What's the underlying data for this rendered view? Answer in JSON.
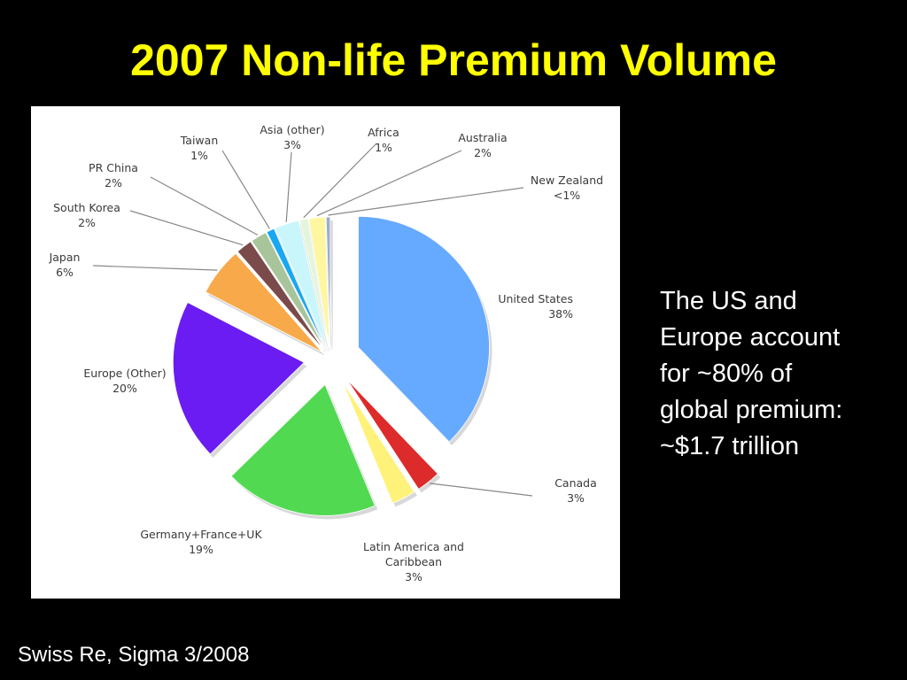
{
  "slide": {
    "title": "2007 Non-life Premium Volume",
    "note_lines": [
      "The US and",
      "Europe account",
      "for ~80% of",
      "global premium:",
      "~$1.7 trillion"
    ],
    "source": "Swiss Re, Sigma 3/2008"
  },
  "chart_data": {
    "type": "pie",
    "title": "",
    "unit": "%",
    "legend": "none",
    "slices": [
      {
        "name": "United States",
        "label": "38%",
        "value": 38,
        "color": "#66aaff"
      },
      {
        "name": "Canada",
        "label": "3%",
        "value": 3,
        "color": "#dd2b2b"
      },
      {
        "name": "Latin America and Caribbean",
        "label": "3%",
        "value": 3,
        "color": "#fff27a"
      },
      {
        "name": "Germany+France+UK",
        "label": "19%",
        "value": 19,
        "color": "#52d952"
      },
      {
        "name": "Europe (Other)",
        "label": "20%",
        "value": 20,
        "color": "#6a1cf2"
      },
      {
        "name": "Japan",
        "label": "6%",
        "value": 6,
        "color": "#f8a94a"
      },
      {
        "name": "South Korea",
        "label": "2%",
        "value": 2,
        "color": "#7b4a4a"
      },
      {
        "name": "PR China",
        "label": "2%",
        "value": 2,
        "color": "#a8c49a"
      },
      {
        "name": "Taiwan",
        "label": "1%",
        "value": 1,
        "color": "#18a8f0"
      },
      {
        "name": "Asia (other)",
        "label": "3%",
        "value": 3,
        "color": "#c8f6fa"
      },
      {
        "name": "Africa",
        "label": "1%",
        "value": 1,
        "color": "#e4f5dc"
      },
      {
        "name": "Australia",
        "label": "2%",
        "value": 2,
        "color": "#fff6a0"
      },
      {
        "name": "New Zealand",
        "label": "<1%",
        "value": 0.5,
        "color": "#9aaecc"
      }
    ]
  }
}
